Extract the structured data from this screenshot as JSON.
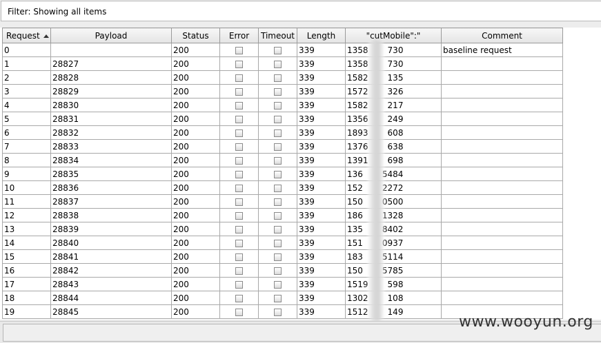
{
  "filter": {
    "text": "Filter:  Showing all items"
  },
  "columns": [
    "Request",
    "Payload",
    "Status",
    "Error",
    "Timeout",
    "Length",
    "\"cutMobile\":\"",
    "Comment"
  ],
  "rows": [
    {
      "request": "0",
      "payload": "",
      "status": "200",
      "length": "339",
      "mobile": "1358",
      "mobile_tail": "730",
      "comment": "baseline request"
    },
    {
      "request": "1",
      "payload": "28827",
      "status": "200",
      "length": "339",
      "mobile": "1358",
      "mobile_tail": "730",
      "comment": ""
    },
    {
      "request": "2",
      "payload": "28828",
      "status": "200",
      "length": "339",
      "mobile": "1582",
      "mobile_tail": "135",
      "comment": ""
    },
    {
      "request": "3",
      "payload": "28829",
      "status": "200",
      "length": "339",
      "mobile": "1572",
      "mobile_tail": "326",
      "comment": ""
    },
    {
      "request": "4",
      "payload": "28830",
      "status": "200",
      "length": "339",
      "mobile": "1582",
      "mobile_tail": "217",
      "comment": ""
    },
    {
      "request": "5",
      "payload": "28831",
      "status": "200",
      "length": "339",
      "mobile": "1356",
      "mobile_tail": "249",
      "comment": ""
    },
    {
      "request": "6",
      "payload": "28832",
      "status": "200",
      "length": "339",
      "mobile": "1893",
      "mobile_tail": "608",
      "comment": ""
    },
    {
      "request": "7",
      "payload": "28833",
      "status": "200",
      "length": "339",
      "mobile": "1376",
      "mobile_tail": "638",
      "comment": ""
    },
    {
      "request": "8",
      "payload": "28834",
      "status": "200",
      "length": "339",
      "mobile": "1391",
      "mobile_tail": "698",
      "comment": ""
    },
    {
      "request": "9",
      "payload": "28835",
      "status": "200",
      "length": "339",
      "mobile": "136",
      "mobile_tail": "5484",
      "comment": ""
    },
    {
      "request": "10",
      "payload": "28836",
      "status": "200",
      "length": "339",
      "mobile": "152",
      "mobile_tail": "2272",
      "comment": ""
    },
    {
      "request": "11",
      "payload": "28837",
      "status": "200",
      "length": "339",
      "mobile": "150",
      "mobile_tail": "0500",
      "comment": ""
    },
    {
      "request": "12",
      "payload": "28838",
      "status": "200",
      "length": "339",
      "mobile": "186",
      "mobile_tail": "1328",
      "comment": ""
    },
    {
      "request": "13",
      "payload": "28839",
      "status": "200",
      "length": "339",
      "mobile": "135",
      "mobile_tail": "8402",
      "comment": ""
    },
    {
      "request": "14",
      "payload": "28840",
      "status": "200",
      "length": "339",
      "mobile": "151",
      "mobile_tail": "0937",
      "comment": ""
    },
    {
      "request": "15",
      "payload": "28841",
      "status": "200",
      "length": "339",
      "mobile": "183",
      "mobile_tail": "5114",
      "comment": ""
    },
    {
      "request": "16",
      "payload": "28842",
      "status": "200",
      "length": "339",
      "mobile": "150",
      "mobile_tail": "5785",
      "comment": ""
    },
    {
      "request": "17",
      "payload": "28843",
      "status": "200",
      "length": "339",
      "mobile": "1519",
      "mobile_tail": "598",
      "comment": ""
    },
    {
      "request": "18",
      "payload": "28844",
      "status": "200",
      "length": "339",
      "mobile": "1302",
      "mobile_tail": "108",
      "comment": ""
    },
    {
      "request": "19",
      "payload": "28845",
      "status": "200",
      "length": "339",
      "mobile": "1512",
      "mobile_tail": "149",
      "comment": ""
    }
  ],
  "sort": {
    "column": "Request",
    "direction": "ascending"
  },
  "watermark": "www.wooyun.org"
}
